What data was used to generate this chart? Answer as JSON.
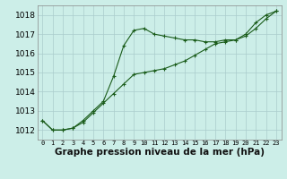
{
  "background_color": "#cceee8",
  "grid_color": "#aacccc",
  "line_color": "#1a5c1a",
  "ylim": [
    1011.5,
    1018.5
  ],
  "yticks": [
    1012,
    1013,
    1014,
    1015,
    1016,
    1017,
    1018
  ],
  "xlim": [
    -0.5,
    23.5
  ],
  "series1": [
    1012.5,
    1012.0,
    1012.0,
    1012.1,
    1012.5,
    1013.0,
    1013.5,
    1014.8,
    1016.4,
    1017.2,
    1017.3,
    1017.0,
    1016.9,
    1016.8,
    1016.7,
    1016.7,
    1016.6,
    1016.6,
    1016.7,
    1016.7,
    1017.0,
    1017.6,
    1018.0,
    1018.2
  ],
  "series2": [
    1012.5,
    1012.0,
    1012.0,
    1012.1,
    1012.4,
    1012.9,
    1013.4,
    1013.9,
    1014.4,
    1014.9,
    1015.0,
    1015.1,
    1015.2,
    1015.4,
    1015.6,
    1015.9,
    1016.2,
    1016.5,
    1016.6,
    1016.7,
    1016.9,
    1017.3,
    1017.8,
    1018.2
  ],
  "xlabel": "Graphe pression niveau de la mer (hPa)",
  "ytick_fontsize": 6.5,
  "xtick_fontsize": 5.0,
  "label_fontsize": 7.5
}
